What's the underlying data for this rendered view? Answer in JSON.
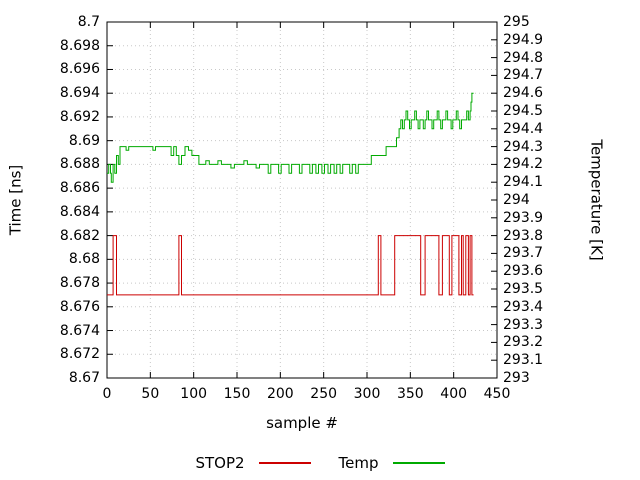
{
  "chart_data": {
    "type": "line",
    "title": "",
    "xlabel": "sample #",
    "ylabel_left": "Time [ns]",
    "ylabel_right": "Temperature [K]",
    "x_range": [
      0,
      450
    ],
    "y_left_range": [
      8.67,
      8.7
    ],
    "y_right_range": [
      293,
      295
    ],
    "x_ticks": [
      "0",
      "50",
      "100",
      "150",
      "200",
      "250",
      "300",
      "350",
      "400",
      "450"
    ],
    "y_left_ticks": [
      "8.67",
      "8.672",
      "8.674",
      "8.676",
      "8.678",
      "8.68",
      "8.682",
      "8.684",
      "8.686",
      "8.688",
      "8.69",
      "8.692",
      "8.694",
      "8.696",
      "8.698",
      "8.7"
    ],
    "y_right_ticks": [
      "293",
      "293.1",
      "293.2",
      "293.3",
      "293.4",
      "293.5",
      "293.6",
      "293.7",
      "293.8",
      "293.9",
      "294",
      "294.1",
      "294.2",
      "294.3",
      "294.4",
      "294.5",
      "294.6",
      "294.7",
      "294.8",
      "294.9",
      "295"
    ],
    "grid": true,
    "legend_position": "bottom-center",
    "colors": {
      "grid": "#c8c8c8",
      "border": "#000000",
      "background": "#ffffff"
    },
    "series": [
      {
        "name": "STOP2",
        "axis": "left",
        "color": "#cc0000",
        "style": "steps",
        "points": [
          [
            0,
            8.677
          ],
          [
            7,
            8.682
          ],
          [
            11,
            8.677
          ],
          [
            83,
            8.682
          ],
          [
            86,
            8.677
          ],
          [
            313,
            8.682
          ],
          [
            316,
            8.677
          ],
          [
            332,
            8.682
          ],
          [
            362,
            8.677
          ],
          [
            367,
            8.682
          ],
          [
            383,
            8.677
          ],
          [
            387,
            8.682
          ],
          [
            395,
            8.677
          ],
          [
            398,
            8.682
          ],
          [
            406,
            8.677
          ],
          [
            409,
            8.682
          ],
          [
            411,
            8.677
          ],
          [
            414,
            8.682
          ],
          [
            417,
            8.677
          ],
          [
            419,
            8.682
          ],
          [
            421,
            8.677
          ],
          [
            423,
            8.677
          ]
        ]
      },
      {
        "name": "Temp",
        "axis": "right",
        "color": "#00aa00",
        "style": "steps",
        "points": [
          [
            0,
            294.15
          ],
          [
            2,
            294.2
          ],
          [
            4,
            294.15
          ],
          [
            5,
            294.1
          ],
          [
            7,
            294.2
          ],
          [
            9,
            294.15
          ],
          [
            11,
            294.25
          ],
          [
            13,
            294.2
          ],
          [
            15,
            294.3
          ],
          [
            18,
            294.3
          ],
          [
            22,
            294.28
          ],
          [
            25,
            294.3
          ],
          [
            30,
            294.3
          ],
          [
            35,
            294.3
          ],
          [
            40,
            294.3
          ],
          [
            45,
            294.3
          ],
          [
            50,
            294.3
          ],
          [
            53,
            294.28
          ],
          [
            56,
            294.3
          ],
          [
            60,
            294.3
          ],
          [
            65,
            294.3
          ],
          [
            70,
            294.3
          ],
          [
            74,
            294.25
          ],
          [
            77,
            294.3
          ],
          [
            80,
            294.25
          ],
          [
            83,
            294.2
          ],
          [
            86,
            294.25
          ],
          [
            90,
            294.3
          ],
          [
            94,
            294.28
          ],
          [
            98,
            294.25
          ],
          [
            102,
            294.25
          ],
          [
            106,
            294.2
          ],
          [
            110,
            294.2
          ],
          [
            114,
            294.22
          ],
          [
            118,
            294.2
          ],
          [
            124,
            294.2
          ],
          [
            128,
            294.22
          ],
          [
            132,
            294.2
          ],
          [
            138,
            294.2
          ],
          [
            143,
            294.18
          ],
          [
            147,
            294.2
          ],
          [
            153,
            294.2
          ],
          [
            158,
            294.22
          ],
          [
            162,
            294.2
          ],
          [
            168,
            294.2
          ],
          [
            172,
            294.18
          ],
          [
            176,
            294.2
          ],
          [
            182,
            294.2
          ],
          [
            186,
            294.15
          ],
          [
            189,
            294.2
          ],
          [
            194,
            294.2
          ],
          [
            198,
            294.15
          ],
          [
            201,
            294.2
          ],
          [
            206,
            294.2
          ],
          [
            210,
            294.15
          ],
          [
            213,
            294.2
          ],
          [
            218,
            294.2
          ],
          [
            222,
            294.15
          ],
          [
            225,
            294.2
          ],
          [
            230,
            294.2
          ],
          [
            234,
            294.15
          ],
          [
            237,
            294.2
          ],
          [
            241,
            294.15
          ],
          [
            244,
            294.2
          ],
          [
            248,
            294.15
          ],
          [
            251,
            294.2
          ],
          [
            255,
            294.15
          ],
          [
            258,
            294.2
          ],
          [
            262,
            294.15
          ],
          [
            265,
            294.2
          ],
          [
            269,
            294.15
          ],
          [
            272,
            294.2
          ],
          [
            276,
            294.2
          ],
          [
            280,
            294.15
          ],
          [
            283,
            294.2
          ],
          [
            287,
            294.15
          ],
          [
            290,
            294.2
          ],
          [
            294,
            294.2
          ],
          [
            298,
            294.2
          ],
          [
            302,
            294.2
          ],
          [
            305,
            294.25
          ],
          [
            310,
            294.25
          ],
          [
            315,
            294.25
          ],
          [
            318,
            294.25
          ],
          [
            322,
            294.3
          ],
          [
            326,
            294.3
          ],
          [
            330,
            294.3
          ],
          [
            334,
            294.35
          ],
          [
            337,
            294.4
          ],
          [
            339,
            294.45
          ],
          [
            341,
            294.4
          ],
          [
            343,
            294.45
          ],
          [
            345,
            294.5
          ],
          [
            347,
            294.45
          ],
          [
            349,
            294.4
          ],
          [
            351,
            294.45
          ],
          [
            353,
            294.45
          ],
          [
            355,
            294.5
          ],
          [
            357,
            294.45
          ],
          [
            359,
            294.4
          ],
          [
            361,
            294.45
          ],
          [
            363,
            294.45
          ],
          [
            365,
            294.4
          ],
          [
            367,
            294.45
          ],
          [
            369,
            294.5
          ],
          [
            371,
            294.45
          ],
          [
            373,
            294.45
          ],
          [
            375,
            294.4
          ],
          [
            377,
            294.45
          ],
          [
            379,
            294.45
          ],
          [
            381,
            294.5
          ],
          [
            383,
            294.45
          ],
          [
            385,
            294.4
          ],
          [
            387,
            294.45
          ],
          [
            389,
            294.45
          ],
          [
            391,
            294.5
          ],
          [
            393,
            294.45
          ],
          [
            395,
            294.45
          ],
          [
            397,
            294.4
          ],
          [
            399,
            294.45
          ],
          [
            401,
            294.45
          ],
          [
            403,
            294.5
          ],
          [
            405,
            294.45
          ],
          [
            407,
            294.4
          ],
          [
            409,
            294.45
          ],
          [
            411,
            294.45
          ],
          [
            413,
            294.45
          ],
          [
            415,
            294.5
          ],
          [
            417,
            294.45
          ],
          [
            419,
            294.5
          ],
          [
            420,
            294.55
          ],
          [
            421,
            294.6
          ],
          [
            423,
            294.6
          ]
        ]
      }
    ]
  }
}
